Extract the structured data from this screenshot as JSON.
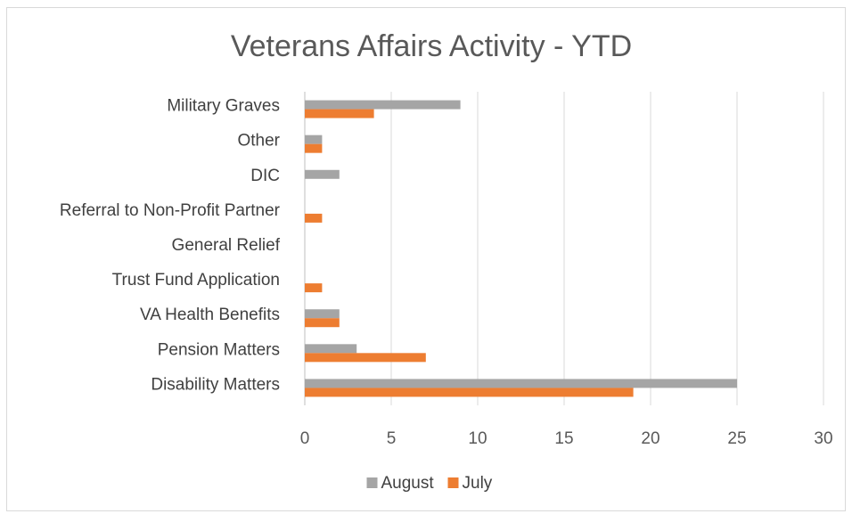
{
  "chart_data": {
    "type": "bar",
    "orientation": "horizontal",
    "title": "Veterans Affairs Activity - YTD",
    "xlabel": "",
    "ylabel": "",
    "categories": [
      "Military Graves",
      "Other",
      "DIC",
      "Referral to Non-Profit Partner",
      "General Relief",
      "Trust Fund Application",
      "VA Health Benefits",
      "Pension Matters",
      "Disability Matters"
    ],
    "series": [
      {
        "name": "August",
        "color": "#a5a5a5",
        "values": [
          9,
          1,
          2,
          0,
          0,
          0,
          2,
          3,
          25
        ]
      },
      {
        "name": "July",
        "color": "#ed7d31",
        "values": [
          4,
          1,
          0,
          1,
          0,
          1,
          2,
          7,
          19
        ]
      }
    ],
    "xlim": [
      0,
      30
    ],
    "xticks": [
      "0",
      "5",
      "10",
      "15",
      "20",
      "25",
      "30"
    ],
    "grid": "vertical",
    "legend_position": "bottom"
  }
}
